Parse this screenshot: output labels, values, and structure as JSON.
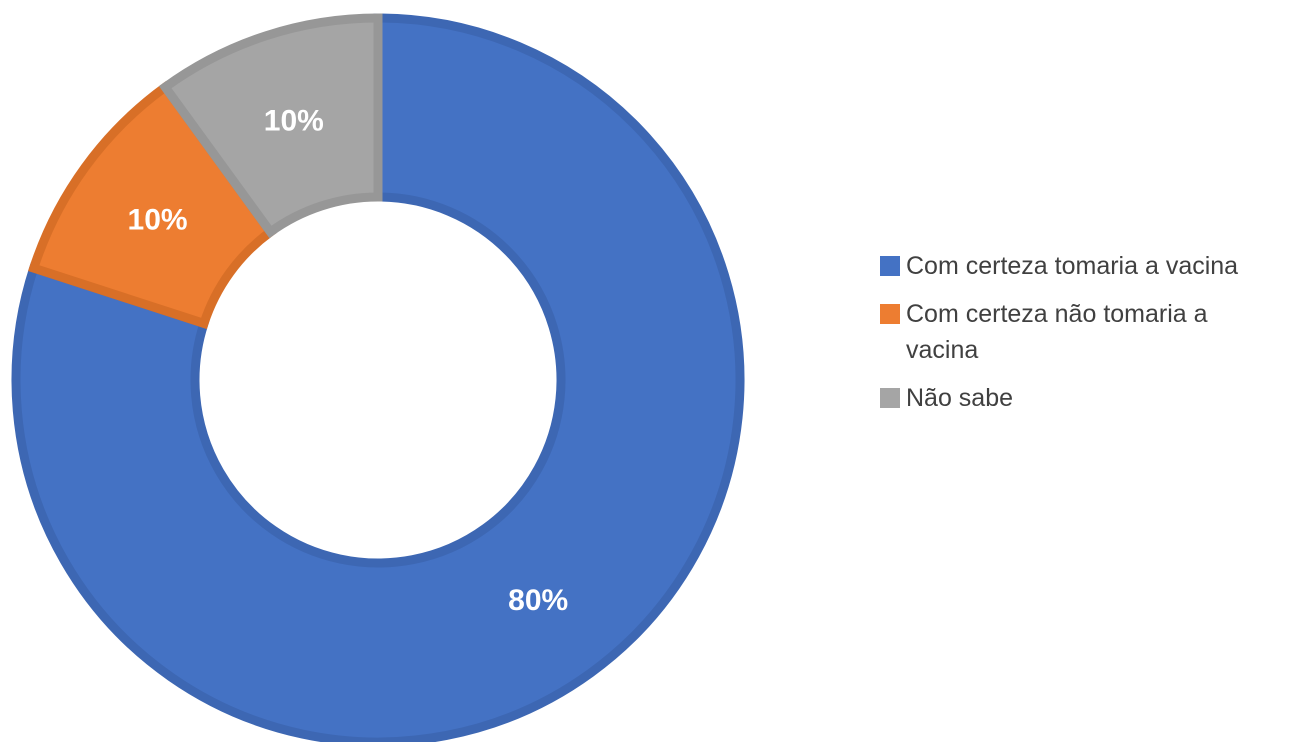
{
  "chart_data": {
    "type": "pie",
    "variant": "doughnut",
    "categories": [
      "Com certeza tomaria a vacina",
      "Com certeza não tomaria a vacina",
      "Não sabe"
    ],
    "values": [
      80,
      10,
      10
    ],
    "data_labels": [
      "80%",
      "10%",
      "10%"
    ],
    "colors": [
      "#4472C4",
      "#ED7D31",
      "#A5A5A5"
    ],
    "edge_colors": [
      "#3D67B3",
      "#D86F27",
      "#979797"
    ],
    "label_color": "#FFFFFF",
    "legend_text_color": "#404040",
    "legend_position": "right",
    "start_angle": "top, clockwise",
    "unit": "%"
  }
}
